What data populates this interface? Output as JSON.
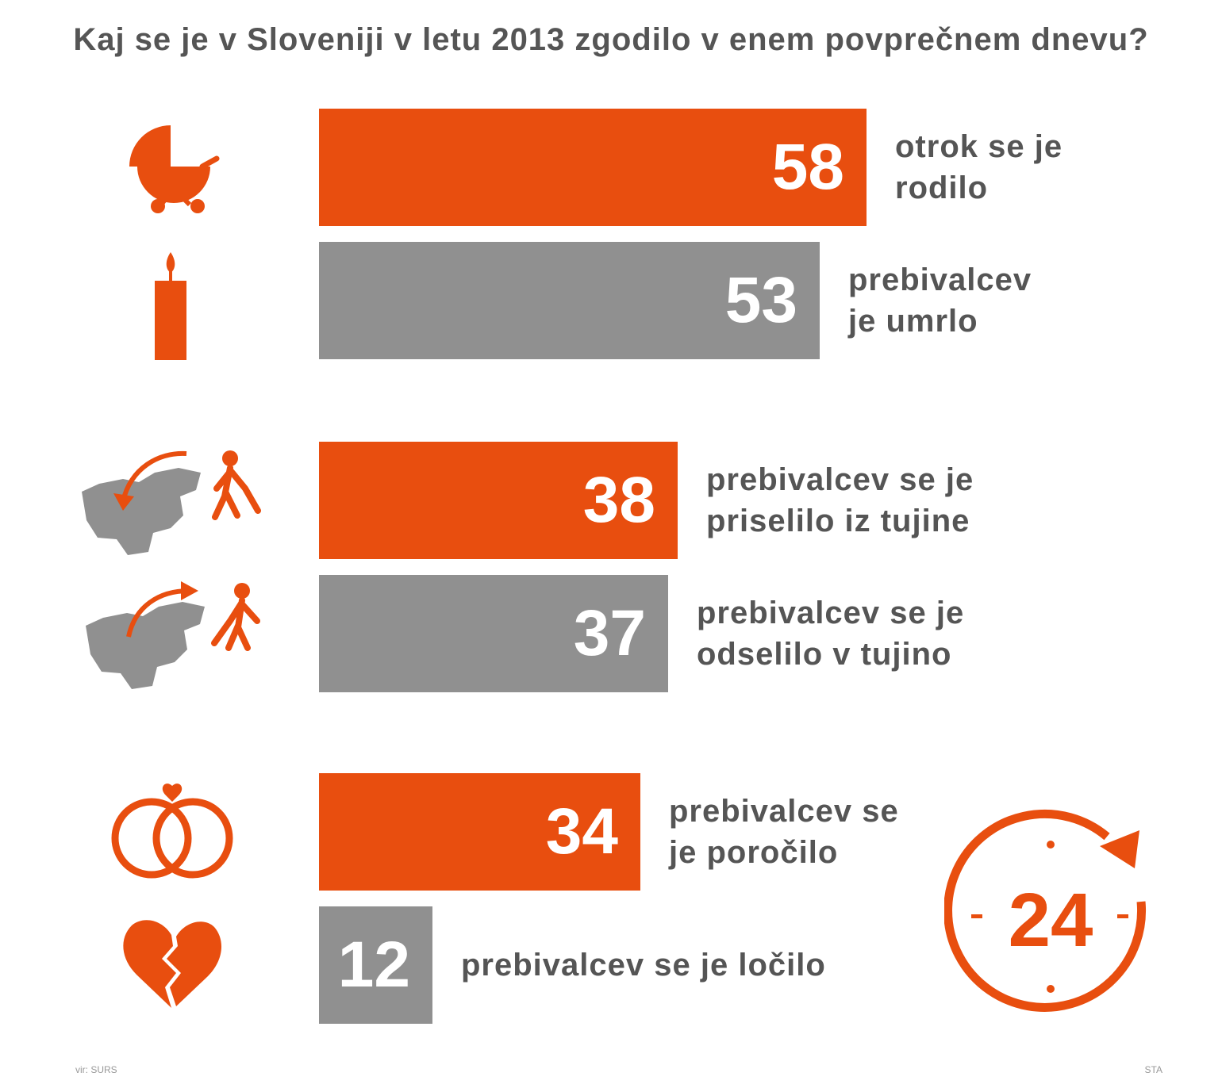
{
  "chart_data": {
    "type": "bar",
    "orientation": "horizontal",
    "title": "Kaj se je v Sloveniji v letu 2013 zgodilo v enem povprečnem dnevu?",
    "categories": [
      "otrok se je rodilo",
      "prebivalcev je umrlo",
      "prebivalcev se je priselilo iz tujine",
      "prebivalcev se je odselilo v tujino",
      "prebivalcev se je poročilo",
      "prebivalcev se je ločilo"
    ],
    "values": [
      58,
      53,
      38,
      37,
      34,
      12
    ],
    "label_lines": [
      [
        "otrok se je",
        "rodilo"
      ],
      [
        "prebivalcev",
        "je umrlo"
      ],
      [
        "prebivalcev se je",
        "priselilo iz tujine"
      ],
      [
        "prebivalcev se je",
        "odselilo v tujino"
      ],
      [
        "prebivalcev se",
        "je poročilo"
      ],
      [
        "prebivalcev se je ločilo"
      ]
    ],
    "bar_colors": [
      "#e84e0f",
      "#909090",
      "#e84e0f",
      "#909090",
      "#e84e0f",
      "#909090"
    ],
    "icons": [
      "stroller-icon",
      "candle-icon",
      "immigration-icon",
      "emigration-icon",
      "wedding-rings-icon",
      "broken-heart-icon"
    ],
    "clock_label": "24"
  },
  "colors": {
    "orange": "#e84e0f",
    "gray": "#909090",
    "text": "#555555"
  },
  "footer": {
    "left": "vir: SURS",
    "right": "STA"
  }
}
